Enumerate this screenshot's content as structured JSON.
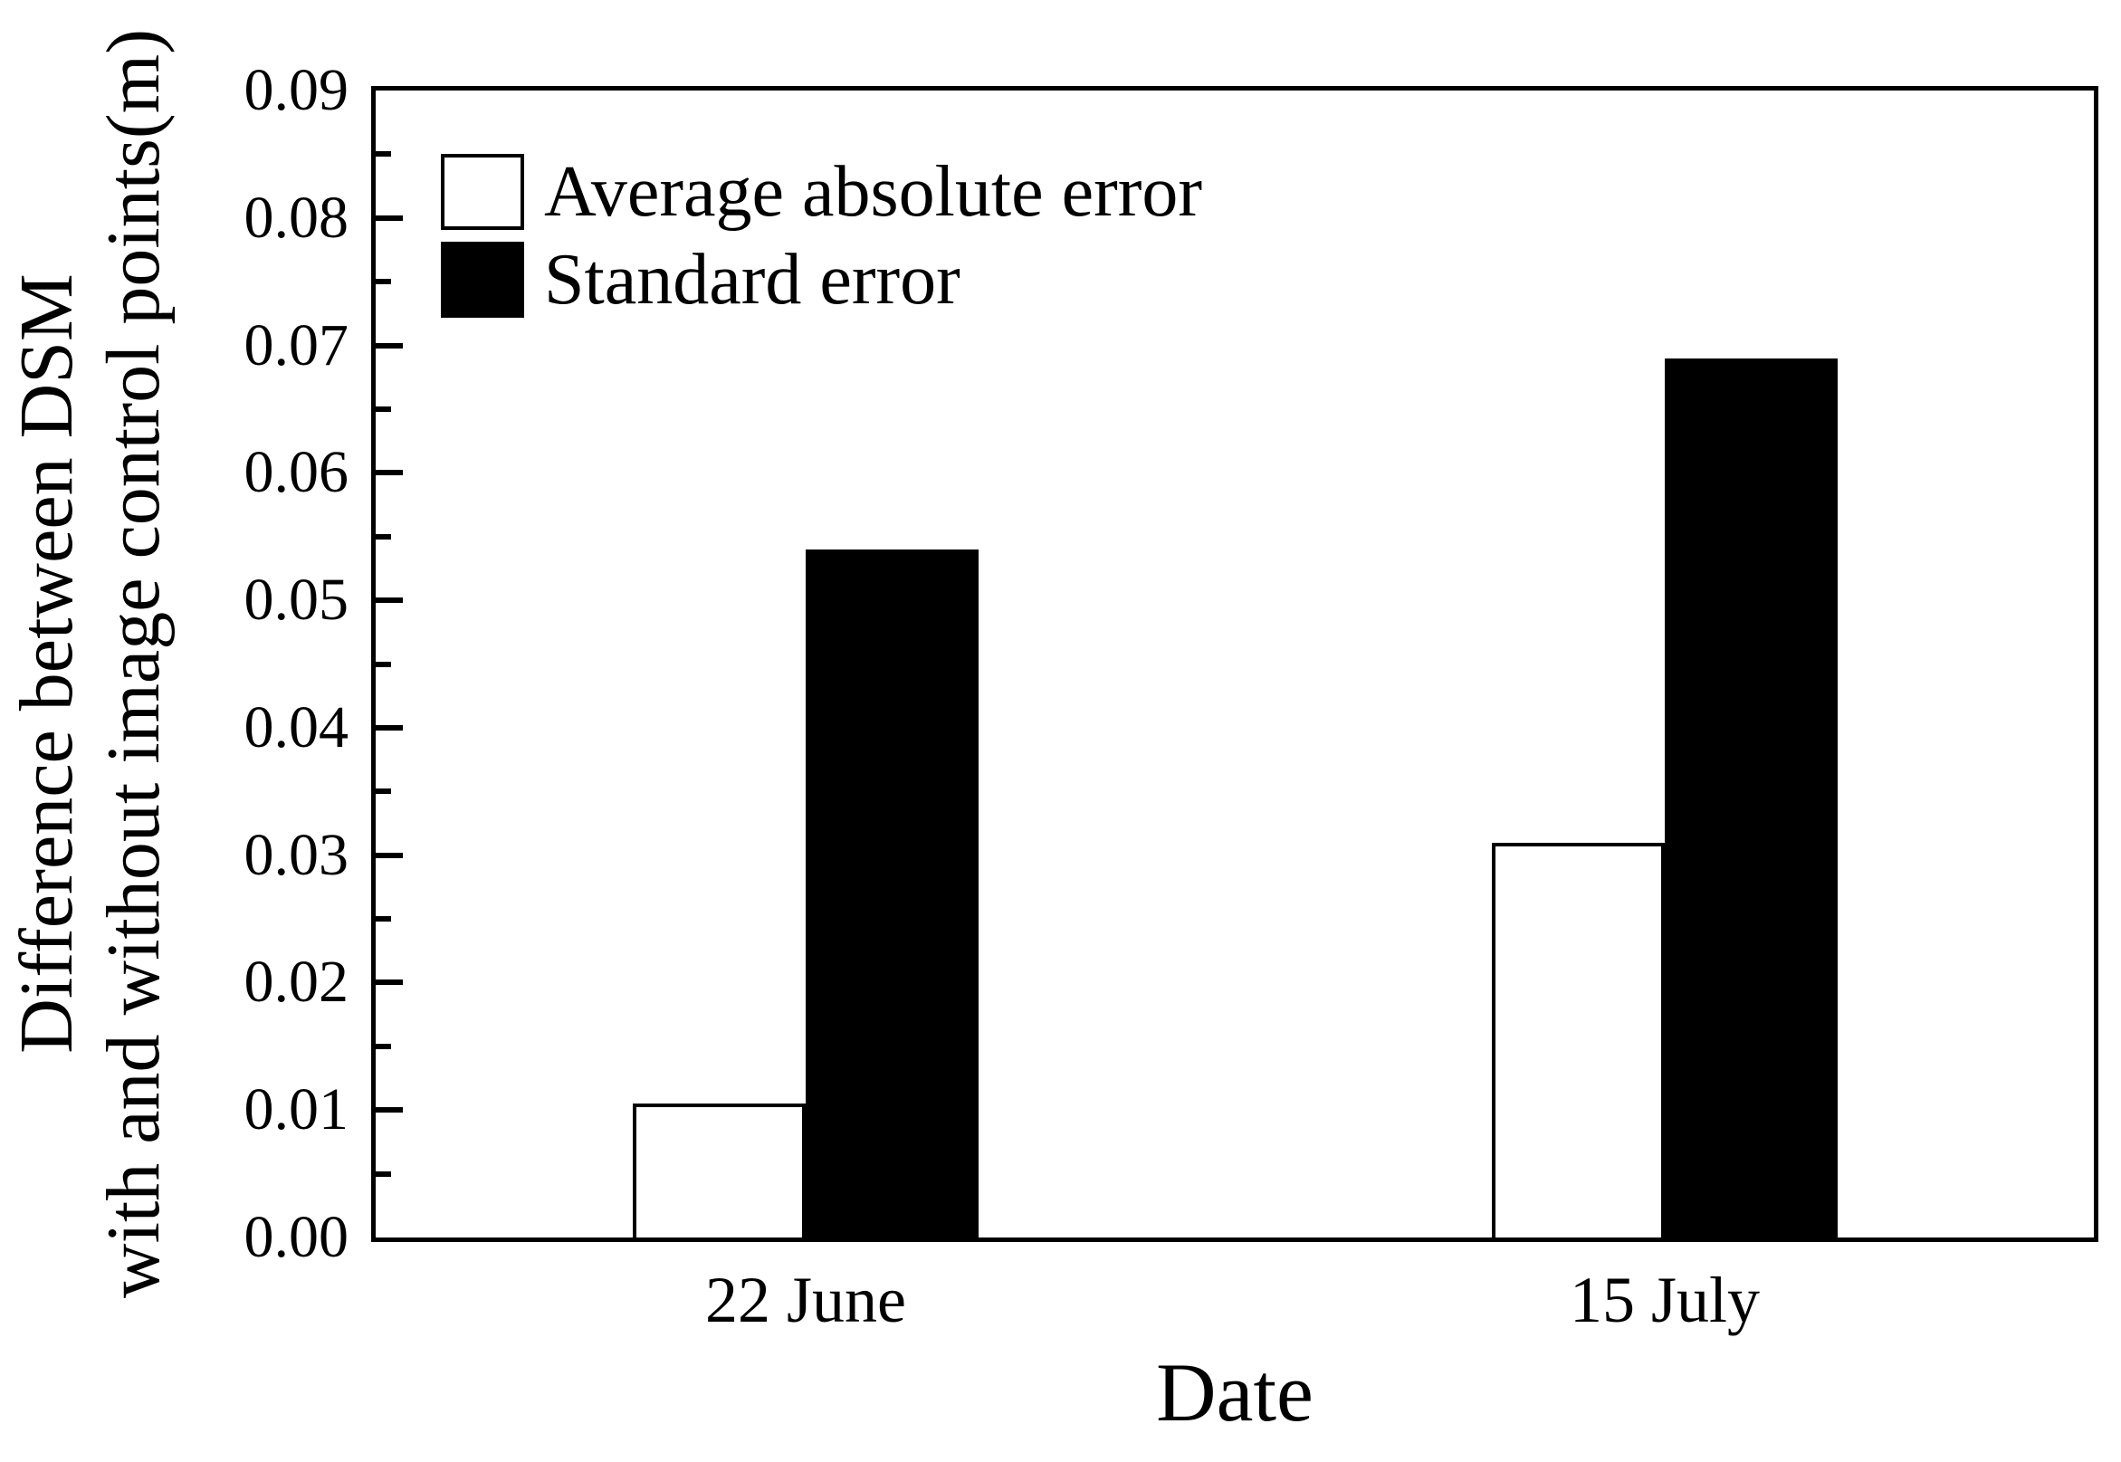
{
  "chart_data": {
    "type": "bar",
    "title": "",
    "xlabel": "Date",
    "ylabel_line1": "Difference between DSM",
    "ylabel_line2": "with and without image control points(m)",
    "categories": [
      "22 June",
      "15 July"
    ],
    "series": [
      {
        "name": "Average absolute error",
        "values": [
          0.0105,
          0.031
        ],
        "fill": "#ffffff",
        "border": "#000000"
      },
      {
        "name": "Standard error",
        "values": [
          0.054,
          0.069
        ],
        "fill": "#000000",
        "border": "#000000"
      }
    ],
    "ylim": [
      0,
      0.09
    ],
    "y_major_step": 0.01,
    "y_minor_step": 0.005,
    "y_tick_labels": [
      "0.00",
      "0.01",
      "0.02",
      "0.03",
      "0.04",
      "0.05",
      "0.06",
      "0.07",
      "0.08",
      "0.09"
    ],
    "legend_position": "top-left",
    "grid": false,
    "bar_group_centers_fraction": [
      0.25,
      0.75
    ],
    "bar_width_fraction": 0.1006
  },
  "colors": {
    "axis": "#000000",
    "text": "#000000",
    "background": "#ffffff"
  }
}
